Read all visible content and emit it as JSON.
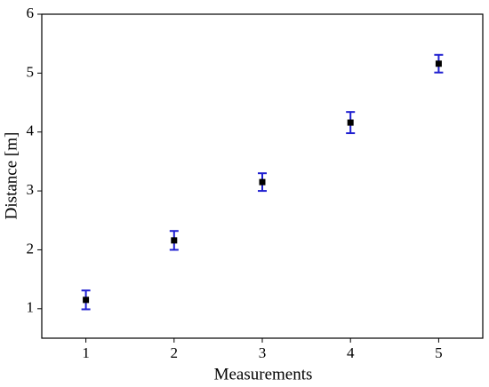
{
  "chart_data": {
    "type": "scatter",
    "x_label": "Measurements",
    "y_label": "Distance [m]",
    "series": [
      {
        "x": [
          1,
          2,
          3,
          4,
          5
        ],
        "values": [
          1.15,
          2.16,
          3.15,
          4.16,
          5.16
        ],
        "errors": [
          0.16,
          0.16,
          0.15,
          0.18,
          0.15
        ],
        "color": "#000000",
        "error_color": "#1f1fd0"
      }
    ],
    "xlim": [
      0.5,
      5.5
    ],
    "xticks": [
      1,
      2,
      3,
      4,
      5
    ],
    "ylim": [
      0.5,
      6
    ],
    "yticks": [
      1,
      2,
      3,
      4,
      5,
      6
    ],
    "grid": false
  }
}
